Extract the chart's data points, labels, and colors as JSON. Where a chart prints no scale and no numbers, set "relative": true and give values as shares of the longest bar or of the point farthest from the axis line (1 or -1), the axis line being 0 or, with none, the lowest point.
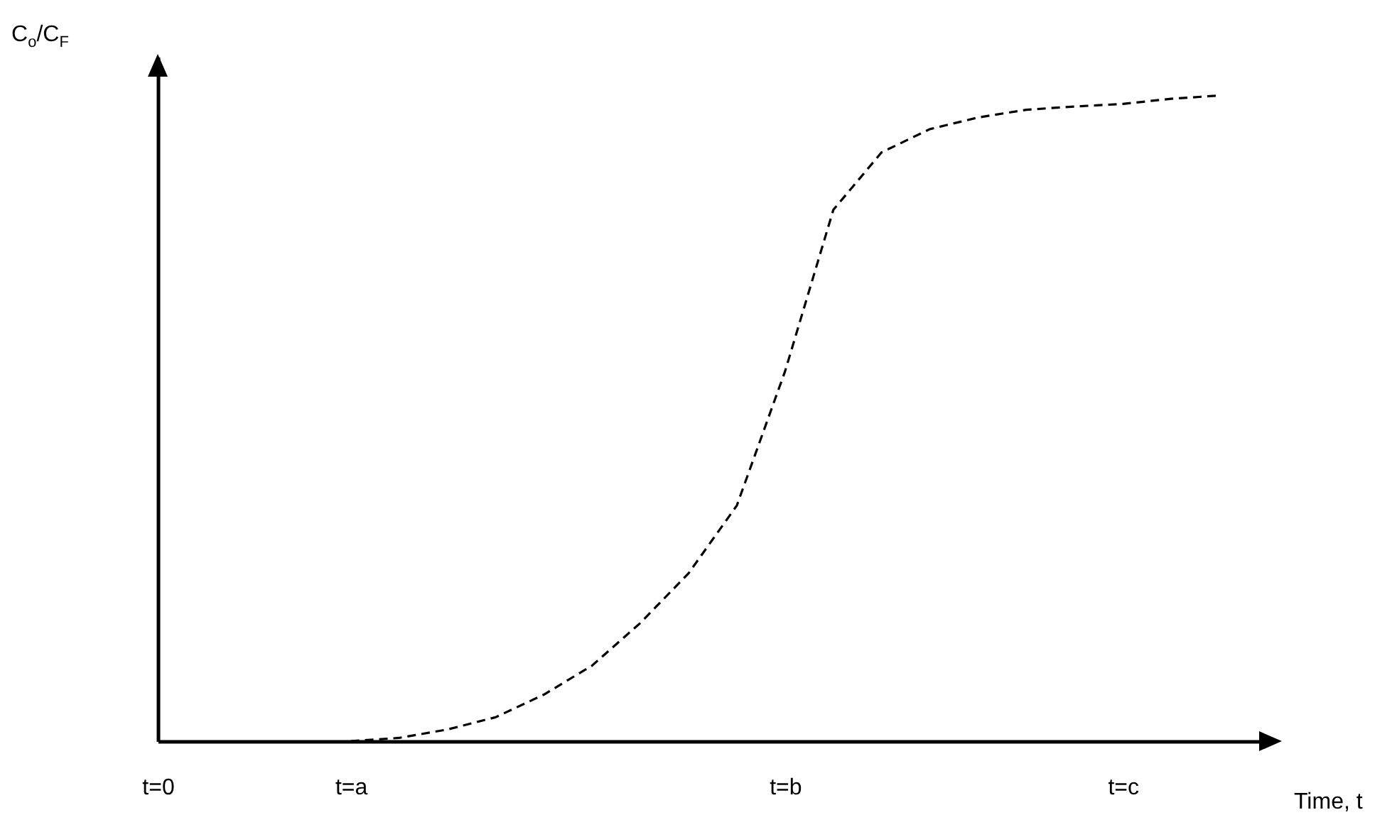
{
  "chart_data": {
    "type": "line",
    "relative": true,
    "xlabel": "Time, t",
    "ylabel": "C$_{o}$/C$_{F}$",
    "categories": [
      "t=0",
      null,
      null,
      null,
      "t=a",
      null,
      null,
      null,
      null,
      null,
      null,
      null,
      null,
      "t=b",
      null,
      null,
      null,
      null,
      null,
      null,
      "t=c",
      null,
      null,
      null
    ],
    "series": [
      {
        "color": "#000000",
        "line_style": "dashed",
        "values": [
          null,
          null,
          null,
          null,
          0,
          0.005,
          0.018,
          0.037,
          0.072,
          0.117,
          0.183,
          0.26,
          0.365,
          0.573,
          0.823,
          0.912,
          0.948,
          0.966,
          0.978,
          0.983,
          0.987,
          0.995,
          1,
          null
        ]
      }
    ]
  }
}
